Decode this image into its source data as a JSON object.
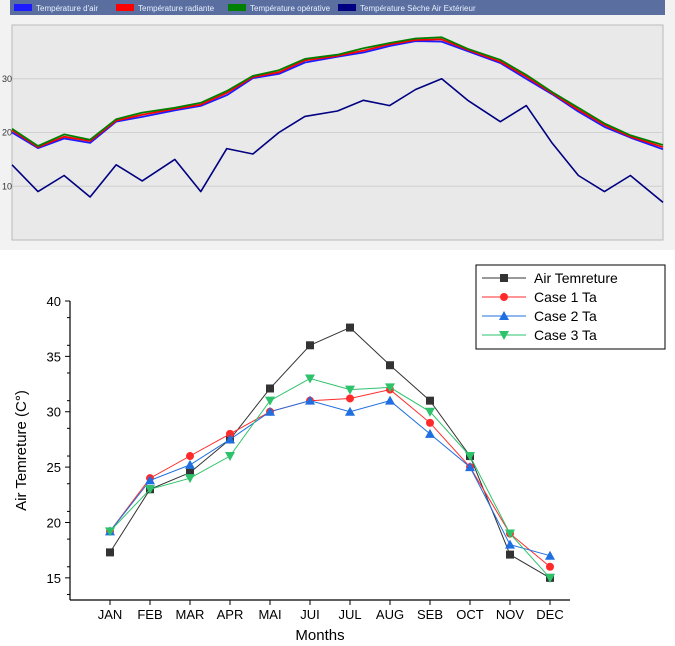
{
  "chart_data": [
    {
      "type": "line",
      "title": "",
      "xlabel": "",
      "ylabel": "",
      "legend_position": "top",
      "grid": true,
      "ylim": [
        0,
        40
      ],
      "yticks": [
        "10",
        "20",
        "30"
      ],
      "x": [
        0,
        0.04,
        0.08,
        0.12,
        0.16,
        0.2,
        0.25,
        0.29,
        0.33,
        0.37,
        0.41,
        0.45,
        0.5,
        0.54,
        0.58,
        0.62,
        0.66,
        0.7,
        0.75,
        0.79,
        0.83,
        0.87,
        0.91,
        0.95,
        1.0
      ],
      "series": [
        {
          "name": "Température d'air",
          "color": "#1c1cff",
          "values": [
            20,
            17,
            19,
            18,
            22,
            23,
            24,
            25,
            27,
            30,
            31,
            33,
            34,
            35,
            36,
            37,
            37,
            35,
            33,
            30,
            27,
            24,
            21,
            19,
            17
          ]
        },
        {
          "name": "Température radiante",
          "color": "#ff0000",
          "values": [
            20,
            17,
            19,
            18,
            22,
            23,
            24,
            25,
            27,
            30,
            31,
            33,
            34,
            35,
            36,
            37,
            37,
            35,
            33,
            30,
            27,
            24,
            21,
            19,
            17
          ]
        },
        {
          "name": "Température opérative",
          "color": "#008000",
          "values": [
            20,
            17,
            19,
            18,
            22,
            23,
            24,
            25,
            27,
            30,
            31,
            33,
            34,
            35,
            36,
            37,
            37,
            35,
            33,
            30,
            27,
            24,
            21,
            19,
            17
          ]
        },
        {
          "name": "Température Sèche Air Extérieur",
          "color": "#000080",
          "values": [
            14,
            9,
            12,
            8,
            14,
            11,
            15,
            9,
            17,
            16,
            20,
            23,
            24,
            26,
            25,
            28,
            30,
            26,
            22,
            25,
            18,
            12,
            9,
            12,
            7
          ]
        }
      ]
    },
    {
      "type": "line",
      "title": "",
      "xlabel": "Months",
      "ylabel": "Air Temreture (C°)",
      "legend_position": "top-right",
      "grid": false,
      "ylim": [
        13,
        40
      ],
      "yticks": [
        15,
        20,
        25,
        30,
        35,
        40
      ],
      "categories": [
        "JAN",
        "FEB",
        "MAR",
        "APR",
        "MAI",
        "JUI",
        "JUL",
        "AUG",
        "SEB",
        "OCT",
        "NOV",
        "DEC"
      ],
      "series": [
        {
          "name": "Air Temreture",
          "color": "#333333",
          "marker": "square",
          "values": [
            17.3,
            23,
            24.5,
            27.5,
            32.1,
            36,
            37.6,
            34.2,
            31,
            26,
            17.1,
            15
          ]
        },
        {
          "name": "Case 1 Ta",
          "color": "#ff2a2a",
          "marker": "circle",
          "values": [
            19.2,
            24,
            26,
            28,
            30,
            31,
            31.2,
            32,
            29,
            25,
            19,
            16
          ]
        },
        {
          "name": "Case 2 Ta",
          "color": "#1f6fe0",
          "marker": "triangle-up",
          "values": [
            19.2,
            23.8,
            25.2,
            27.5,
            30,
            31,
            30,
            31,
            28,
            25,
            18,
            17
          ]
        },
        {
          "name": "Case 3 Ta",
          "color": "#2ec26b",
          "marker": "triangle-down",
          "values": [
            19.2,
            23,
            24,
            26,
            31,
            33,
            32,
            32.2,
            30,
            26,
            19,
            15
          ]
        }
      ]
    }
  ]
}
